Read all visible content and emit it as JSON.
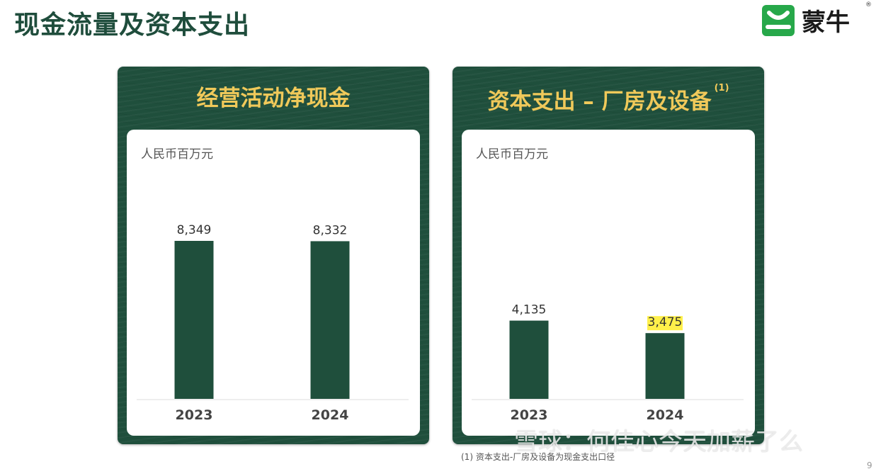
{
  "page": {
    "title": "现金流量及资本支出",
    "footnote": "(1) 资本支出-厂房及设备为现金支出口径",
    "watermark": "雪球：何佳心今天加薪了么",
    "page_number": "9"
  },
  "logo": {
    "text": "蒙牛",
    "registered": "®",
    "icon": "mengniu-logo-icon",
    "colors": {
      "green": "#27a84a",
      "text": "#1a1a1a"
    }
  },
  "colors": {
    "panel_bg": "#1f4f3c",
    "panel_title": "#f0c95a",
    "bar": "#1f4f3c",
    "highlight": "#fff04a",
    "title": "#1f4d3c"
  },
  "panels": [
    {
      "title": "经营活动净现金",
      "superscript": "",
      "unit": "人民币百万元"
    },
    {
      "title": "资本支出 – 厂房及设备",
      "superscript": "(1)",
      "unit": "人民币百万元"
    }
  ],
  "chart_data": [
    {
      "type": "bar",
      "title": "经营活动净现金",
      "ylabel": "人民币百万元",
      "categories": [
        "2023",
        "2024"
      ],
      "values": [
        8349,
        8332
      ],
      "value_labels": [
        "8,349",
        "8,332"
      ],
      "highlighted": [],
      "ylim": [
        0,
        8349
      ],
      "grid": false
    },
    {
      "type": "bar",
      "title": "资本支出 – 厂房及设备",
      "ylabel": "人民币百万元",
      "categories": [
        "2023",
        "2024"
      ],
      "values": [
        4135,
        3475
      ],
      "value_labels": [
        "4,135",
        "3,475"
      ],
      "highlighted": [
        "3,475"
      ],
      "ylim": [
        0,
        8349
      ],
      "grid": false
    }
  ]
}
